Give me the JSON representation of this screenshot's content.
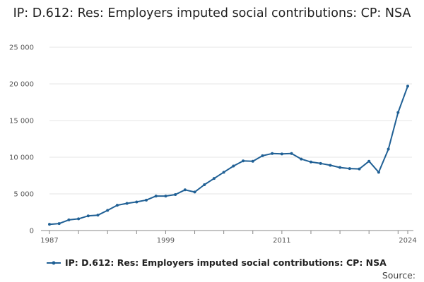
{
  "chart_data": {
    "type": "line",
    "title": "IP: D.612: Res: Employers imputed social contributions: CP: NSA",
    "xlabel": "",
    "ylabel": "",
    "x": [
      1987,
      1988,
      1989,
      1990,
      1991,
      1992,
      1993,
      1994,
      1995,
      1996,
      1997,
      1998,
      1999,
      2000,
      2001,
      2002,
      2003,
      2004,
      2005,
      2006,
      2007,
      2008,
      2009,
      2010,
      2011,
      2012,
      2013,
      2014,
      2015,
      2016,
      2017,
      2018,
      2019,
      2020,
      2021,
      2022,
      2023,
      2024
    ],
    "series": [
      {
        "name": "IP: D.612: Res: Employers imputed social contributions: CP: NSA",
        "color": "#206095",
        "values": [
          850,
          950,
          1450,
          1600,
          2000,
          2100,
          2750,
          3450,
          3700,
          3900,
          4150,
          4700,
          4700,
          4900,
          5550,
          5250,
          6250,
          7100,
          7950,
          8800,
          9500,
          9450,
          10200,
          10500,
          10450,
          10500,
          9750,
          9350,
          9150,
          8900,
          8600,
          8450,
          8400,
          9450,
          7950,
          11100,
          16100,
          19700
        ]
      }
    ],
    "xlim": [
      1987,
      2024
    ],
    "ylim": [
      0,
      25000
    ],
    "yticks": [
      0,
      5000,
      10000,
      15000,
      20000,
      25000
    ],
    "ytick_labels": [
      "0",
      "5 000",
      "10 000",
      "15 000",
      "20 000",
      "25 000"
    ],
    "xtick_labels": [
      {
        "value": 1987,
        "label": "1987"
      },
      {
        "value": 1999,
        "label": "1999"
      },
      {
        "value": 2011,
        "label": "2011"
      },
      {
        "value": 2024,
        "label": "2024"
      }
    ],
    "grid": true,
    "legend": "bottom"
  },
  "source_label": "Source:"
}
